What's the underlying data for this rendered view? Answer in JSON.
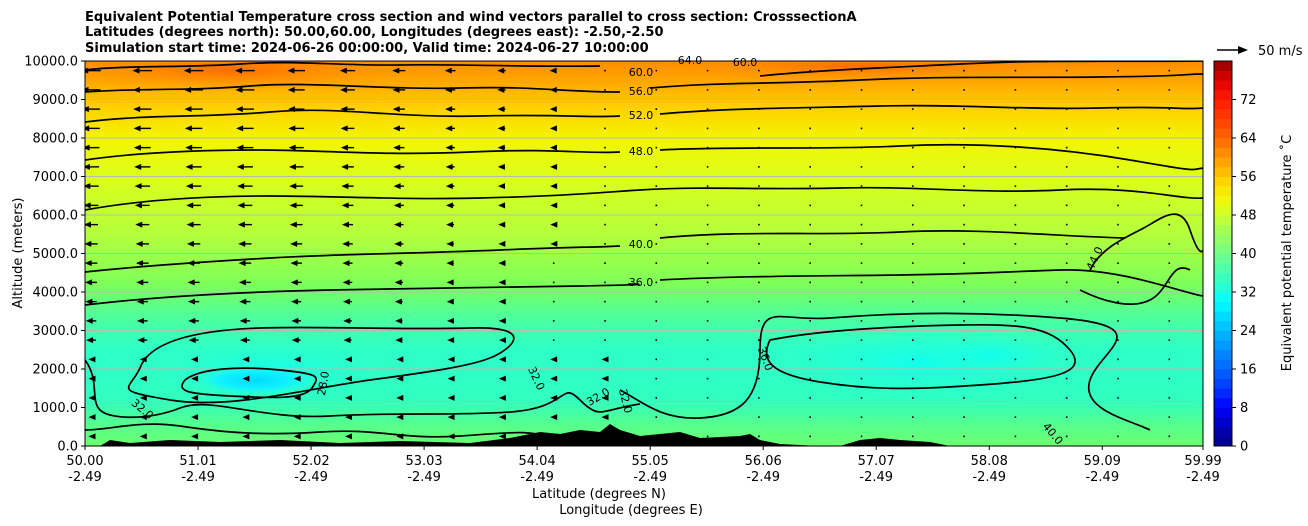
{
  "chart_data": {
    "type": "heatmap",
    "title_lines": [
      "Equivalent Potential Temperature cross section and wind vectors parallel to cross section: CrosssectionA",
      "Latitudes (degrees north): 50.00,60.00, Longitudes (degrees east): -2.50,-2.50",
      "Simulation start time: 2024-06-26 00:00:00, Valid time: 2024-06-27 10:00:00"
    ],
    "xlabel": "Latitude (degrees N)",
    "xlabel2": "Longitude (degrees E)",
    "ylabel": "Altitude (meters)",
    "x_ticks": [
      {
        "lat": "50.00",
        "lon": "-2.49"
      },
      {
        "lat": "51.01",
        "lon": "-2.49"
      },
      {
        "lat": "52.02",
        "lon": "-2.49"
      },
      {
        "lat": "53.03",
        "lon": "-2.49"
      },
      {
        "lat": "54.04",
        "lon": "-2.49"
      },
      {
        "lat": "55.05",
        "lon": "-2.49"
      },
      {
        "lat": "56.06",
        "lon": "-2.49"
      },
      {
        "lat": "57.07",
        "lon": "-2.49"
      },
      {
        "lat": "58.08",
        "lon": "-2.49"
      },
      {
        "lat": "59.09",
        "lon": "-2.49"
      },
      {
        "lat": "59.99",
        "lon": "-2.49"
      }
    ],
    "xlim": [
      50.0,
      59.99
    ],
    "y_ticks": [
      "0.0",
      "1000.0",
      "2000.0",
      "3000.0",
      "4000.0",
      "5000.0",
      "6000.0",
      "7000.0",
      "8000.0",
      "9000.0",
      "10000.0"
    ],
    "ylim": [
      0,
      10000
    ],
    "grid": "horizontal",
    "colorbar": {
      "label": "Equivalent potential temperature  ˚C",
      "min": 0,
      "max": 80,
      "ticks": [
        "0",
        "8",
        "16",
        "24",
        "32",
        "40",
        "48",
        "56",
        "64",
        "72"
      ]
    },
    "quiver_key": "50 m/s",
    "contour_labels": [
      "60.0",
      "56.0",
      "52.0",
      "48.0",
      "40.0",
      "36.0",
      "32.0",
      "28.0",
      "44.0",
      "40.0",
      "36.0",
      "32.0",
      "32.0",
      "32.0",
      "64.0",
      "60.0"
    ],
    "contour_levels": [
      28,
      32,
      36,
      40,
      44,
      48,
      52,
      56,
      60,
      64
    ],
    "colors": {
      "terrain": "#000000",
      "contour": "#000000"
    }
  }
}
